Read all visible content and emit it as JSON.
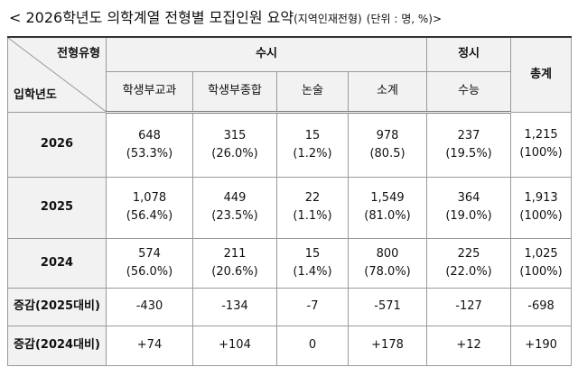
{
  "title": {
    "main": "< 2026학년도 의학계열 전형별 모집인원 요약",
    "sub": "(지역인재전형)",
    "unit": "(단위 : 명, %)>"
  },
  "table": {
    "corner": {
      "top": "전형유형",
      "bottom": "입학년도"
    },
    "groups": [
      "수시",
      "정시",
      "총계"
    ],
    "columns": [
      "학생부교과",
      "학생부종합",
      "논술",
      "소계",
      "수능"
    ],
    "rows": [
      {
        "label": "2026",
        "cells": [
          [
            "648",
            "(53.3%)"
          ],
          [
            "315",
            "(26.0%)"
          ],
          [
            "15",
            "(1.2%)"
          ],
          [
            "978",
            "(80.5)"
          ],
          [
            "237",
            "(19.5%)"
          ],
          [
            "1,215",
            "(100%)"
          ]
        ]
      },
      {
        "label": "2025",
        "cells": [
          [
            "1,078",
            "(56.4%)"
          ],
          [
            "449",
            "(23.5%)"
          ],
          [
            "22",
            "(1.1%)"
          ],
          [
            "1,549",
            "(81.0%)"
          ],
          [
            "364",
            "(19.0%)"
          ],
          [
            "1,913",
            "(100%)"
          ]
        ]
      },
      {
        "label": "2024",
        "cells": [
          [
            "574",
            "(56.0%)"
          ],
          [
            "211",
            "(20.6%)"
          ],
          [
            "15",
            "(1.4%)"
          ],
          [
            "800",
            "(78.0%)"
          ],
          [
            "225",
            "(22.0%)"
          ],
          [
            "1,025",
            "(100%)"
          ]
        ]
      },
      {
        "label": "증감(2025대비)",
        "cells": [
          [
            "-430"
          ],
          [
            "-134"
          ],
          [
            "-7"
          ],
          [
            "-571"
          ],
          [
            "-127"
          ],
          [
            "-698"
          ]
        ]
      },
      {
        "label": "증감(2024대비)",
        "cells": [
          [
            "+74"
          ],
          [
            "+104"
          ],
          [
            "0"
          ],
          [
            "+178"
          ],
          [
            "+12"
          ],
          [
            "+190"
          ]
        ]
      }
    ]
  }
}
